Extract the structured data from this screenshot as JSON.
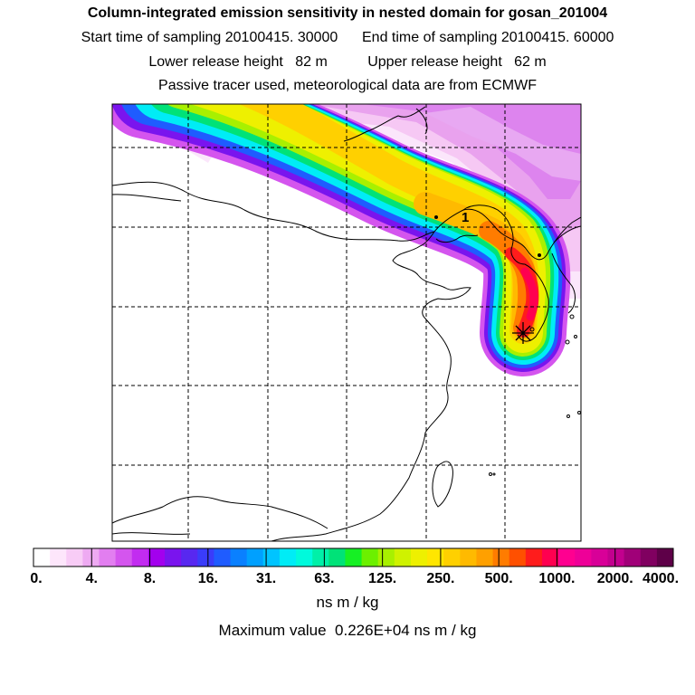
{
  "header": {
    "title": "Column-integrated emission sensitivity in nested domain for gosan_201004",
    "line2": "Start time of sampling 20100415. 30000      End time of sampling 20100415. 60000",
    "line3": "Lower release height   82 m          Upper release height   62 m",
    "line4": "Passive tracer used, meteorological data are from ECMWF"
  },
  "map": {
    "receptor_marker": "asterisk-icon",
    "trajectory_point_label": "1",
    "grid": true
  },
  "colorbar": {
    "tick_labels": [
      "0.",
      "4.",
      "8.",
      "16.",
      "31.",
      "63.",
      "125.",
      "250.",
      "500.",
      "1000.",
      "2000.",
      "4000."
    ],
    "colors": [
      "#ffffff",
      "#fde6fb",
      "#f8ccf6",
      "#eeaaf2",
      "#e27ef0",
      "#d455ee",
      "#c22cf0",
      "#a300ee",
      "#7a14ee",
      "#5828f0",
      "#3a3cfa",
      "#1f5cff",
      "#0a80ff",
      "#00a0ff",
      "#00c4ff",
      "#00ecf6",
      "#00fadc",
      "#00f0a8",
      "#00e278",
      "#16f024",
      "#6cf000",
      "#a8f000",
      "#cff200",
      "#eef000",
      "#ffe600",
      "#ffd000",
      "#ffba00",
      "#ffa000",
      "#ff7c00",
      "#ff5000",
      "#ff1c1c",
      "#ff0050",
      "#ff0090",
      "#ee0098",
      "#d80098",
      "#c2008e",
      "#a00078",
      "#800060",
      "#5e0048"
    ],
    "unit": "ns m / kg"
  },
  "footer": {
    "max_value": "Maximum value  0.226E+04 ns m / kg"
  }
}
